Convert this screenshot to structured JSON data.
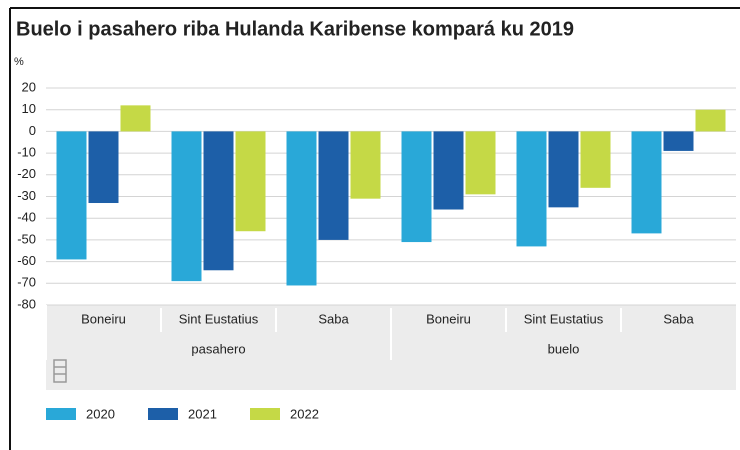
{
  "chart_data": {
    "type": "bar",
    "title": "Buelo i pasahero riba Hulanda Karibense kompará ku 2019",
    "y_label": "%",
    "categories": [
      "Boneiru",
      "Sint Eustatius",
      "Saba",
      "Boneiru",
      "Sint Eustatius",
      "Saba"
    ],
    "category_groups": [
      "pasahero",
      "buelo"
    ],
    "series": [
      {
        "name": "2020",
        "color": "#29a8d8",
        "values": [
          -59,
          -69,
          -71,
          -51,
          -53,
          -47
        ]
      },
      {
        "name": "2021",
        "color": "#1d5fa8",
        "values": [
          -33,
          -64,
          -50,
          -36,
          -35,
          -9
        ]
      },
      {
        "name": "2022",
        "color": "#c5d946",
        "values": [
          12,
          -46,
          -31,
          -29,
          -26,
          10
        ]
      }
    ],
    "ylim": [
      -80,
      20
    ],
    "yticks": [
      20,
      10,
      0,
      -10,
      -20,
      -30,
      -40,
      -50,
      -60,
      -70,
      -80
    ],
    "grid": true,
    "legend": "bottom"
  }
}
